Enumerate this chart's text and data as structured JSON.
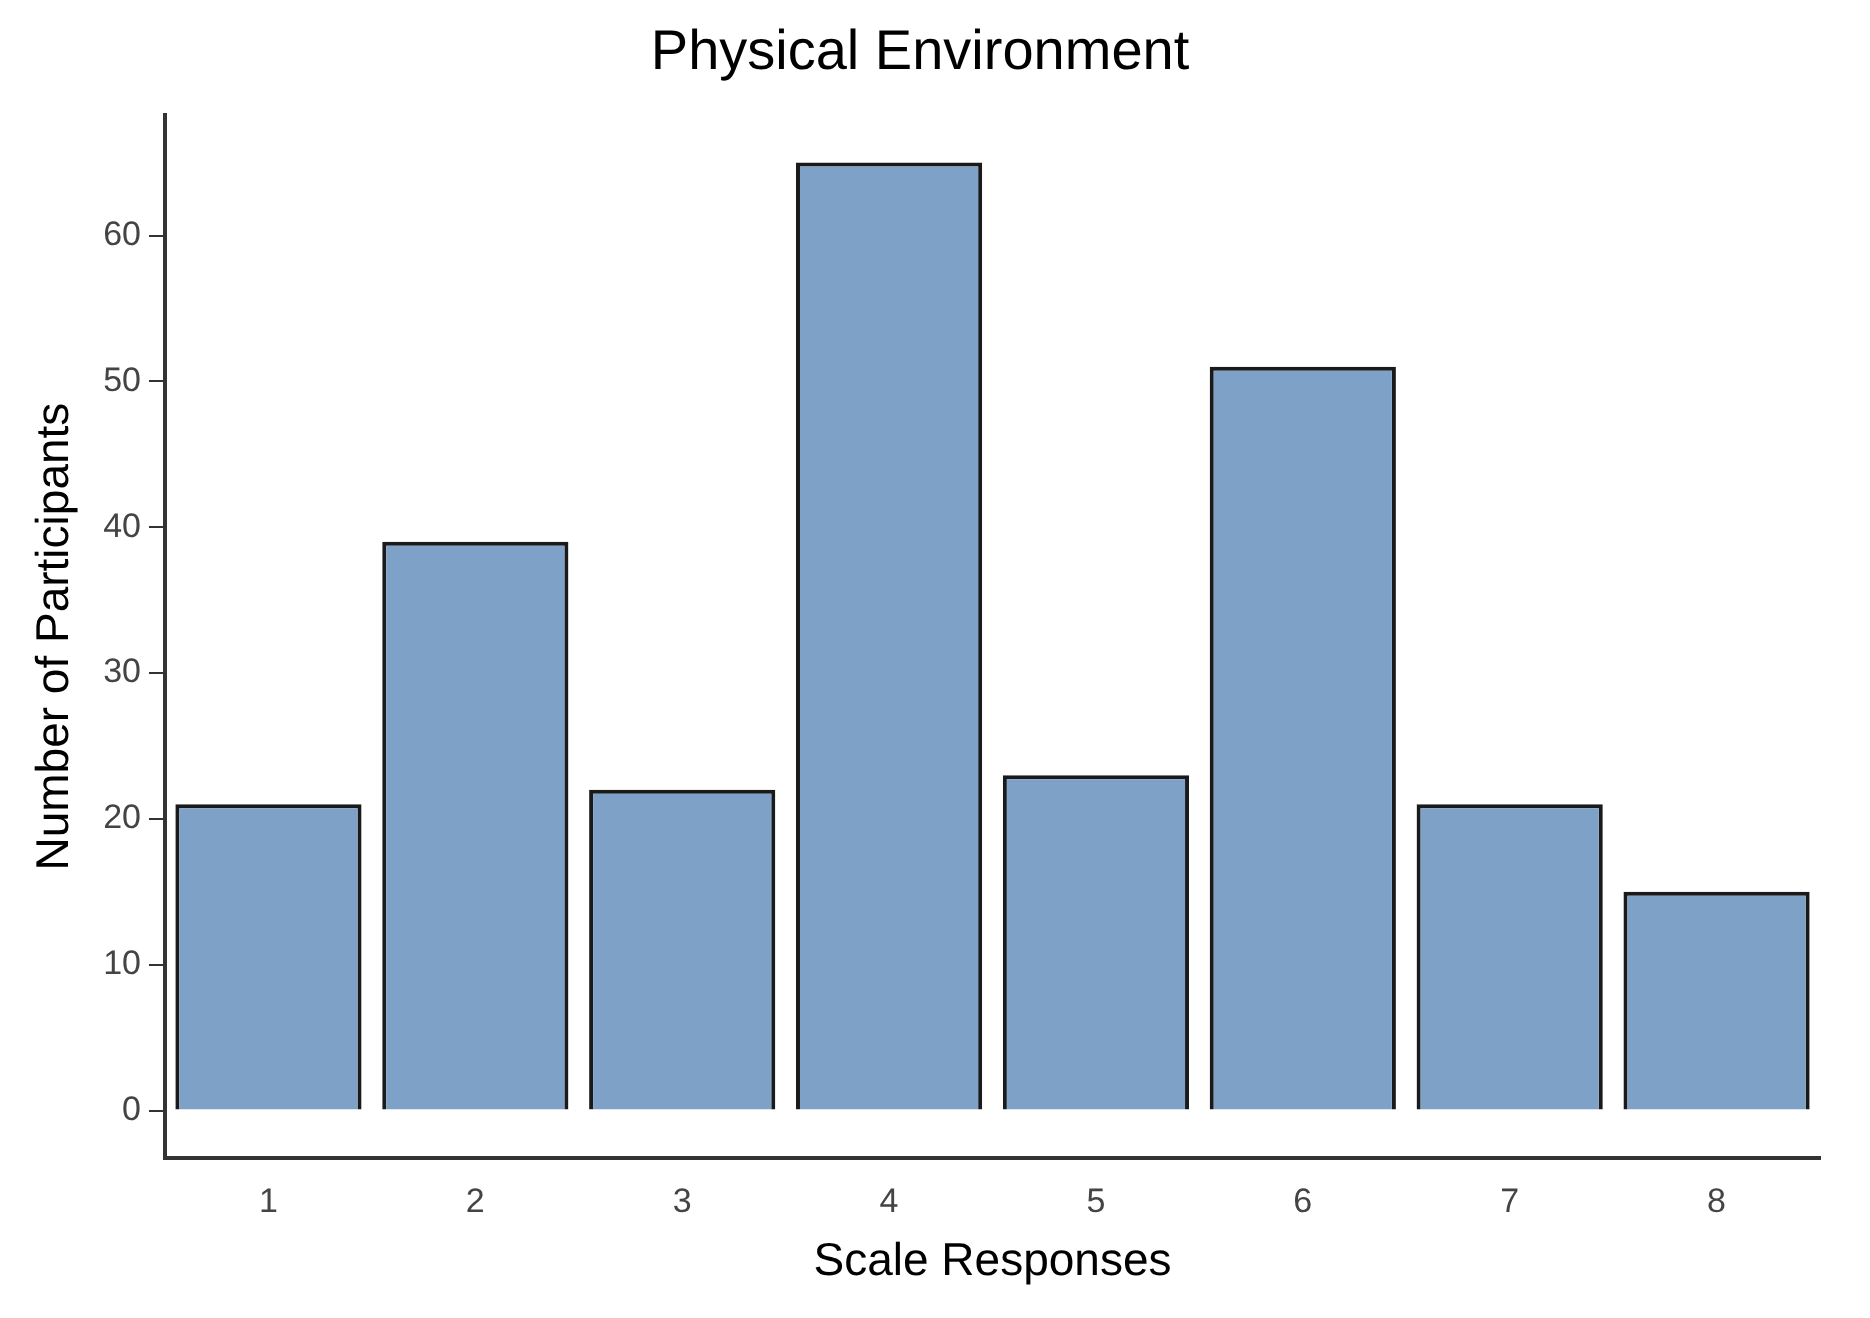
{
  "chart_data": {
    "type": "bar",
    "title": "Physical Environment",
    "xlabel": "Scale Responses",
    "ylabel": "Number of Participants",
    "categories": [
      "1",
      "2",
      "3",
      "4",
      "5",
      "6",
      "7",
      "8"
    ],
    "values": [
      21,
      39,
      22,
      65,
      23,
      51,
      21,
      15
    ],
    "color": "#7ea1c8",
    "ylim": [
      -3.25,
      68.25
    ],
    "yticks": [
      0,
      10,
      20,
      30,
      40,
      50,
      60
    ],
    "grid": false,
    "legend": false
  }
}
